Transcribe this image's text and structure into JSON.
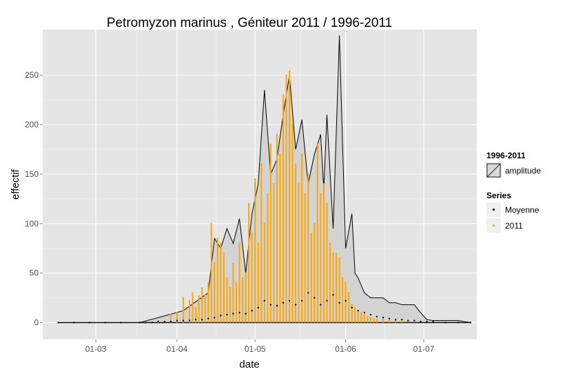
{
  "chart_data": {
    "type": "area",
    "title": "Petromyzon marinus , Géniteur 2011 / 1996-2011",
    "xlabel": "date",
    "ylabel": "effectif",
    "x_ticks": [
      "01-03",
      "01-04",
      "01-05",
      "01-06",
      "01-07"
    ],
    "y_ticks": [
      0,
      50,
      100,
      150,
      200,
      250
    ],
    "xlim_days": [
      -5,
      134
    ],
    "ylim": [
      -17,
      296
    ],
    "grid": true,
    "legend_position": "right",
    "legend_groups": [
      {
        "title": "1996-2011",
        "entries": [
          {
            "label": "amplitude",
            "kind": "fill",
            "color": "#d9d9d9"
          }
        ]
      },
      {
        "title": "Series",
        "entries": [
          {
            "label": "Moyenne",
            "kind": "point",
            "color": "#000000"
          },
          {
            "label": "2011",
            "kind": "point",
            "color": "#ffa500"
          }
        ]
      }
    ],
    "amplitude": {
      "x": [
        0,
        26,
        32,
        40,
        48,
        50,
        52,
        54,
        56,
        58,
        60,
        62,
        64,
        66,
        68,
        70,
        72,
        74,
        76,
        78,
        80,
        82,
        84,
        85,
        86,
        88,
        90,
        92,
        94,
        95,
        96,
        98,
        100,
        102,
        104,
        106,
        108,
        110,
        112,
        114,
        116,
        118,
        120,
        124,
        128,
        132
      ],
      "y": [
        0,
        0,
        5,
        12,
        30,
        85,
        75,
        95,
        80,
        105,
        50,
        110,
        140,
        235,
        150,
        165,
        210,
        250,
        175,
        205,
        140,
        170,
        190,
        135,
        210,
        95,
        290,
        75,
        110,
        50,
        45,
        30,
        25,
        25,
        25,
        20,
        20,
        18,
        18,
        18,
        10,
        3,
        2,
        2,
        2,
        0
      ]
    },
    "year_2011": {
      "x": [
        32,
        36,
        38,
        40,
        42,
        43,
        44,
        45,
        46,
        47,
        48,
        49,
        50,
        51,
        52,
        53,
        54,
        55,
        56,
        57,
        58,
        59,
        60,
        61,
        62,
        63,
        64,
        65,
        66,
        67,
        68,
        69,
        70,
        71,
        72,
        73,
        74,
        75,
        76,
        77,
        78,
        79,
        80,
        81,
        82,
        83,
        84,
        85,
        86,
        87,
        88,
        89,
        90,
        91,
        92,
        93,
        94,
        95,
        96,
        97,
        98,
        99,
        100,
        101,
        102,
        104,
        106,
        108,
        110
      ],
      "y": [
        2,
        8,
        10,
        25,
        22,
        30,
        15,
        27,
        35,
        28,
        40,
        100,
        60,
        85,
        80,
        70,
        45,
        35,
        60,
        40,
        80,
        45,
        50,
        120,
        90,
        145,
        80,
        160,
        100,
        130,
        180,
        140,
        190,
        170,
        230,
        250,
        254,
        200,
        160,
        140,
        170,
        130,
        150,
        90,
        100,
        180,
        130,
        140,
        120,
        80,
        70,
        70,
        65,
        45,
        40,
        30,
        18,
        15,
        12,
        10,
        8,
        6,
        5,
        4,
        3,
        3,
        2,
        2,
        1
      ]
    },
    "moyenne": {
      "x": [
        0,
        5,
        10,
        15,
        20,
        26,
        28,
        30,
        32,
        34,
        36,
        38,
        40,
        42,
        44,
        46,
        48,
        50,
        52,
        54,
        56,
        58,
        60,
        62,
        64,
        66,
        68,
        70,
        72,
        74,
        76,
        78,
        80,
        82,
        84,
        86,
        88,
        90,
        92,
        94,
        96,
        98,
        100,
        102,
        104,
        106,
        108,
        110,
        112,
        114,
        116,
        118,
        120,
        124,
        128,
        132
      ],
      "y": [
        0,
        0,
        0,
        0,
        0,
        0,
        0,
        0,
        1,
        1,
        1,
        2,
        2,
        2,
        3,
        3,
        4,
        5,
        7,
        8,
        9,
        10,
        9,
        12,
        15,
        22,
        18,
        17,
        20,
        22,
        18,
        22,
        30,
        25,
        18,
        22,
        28,
        20,
        22,
        15,
        12,
        10,
        8,
        6,
        5,
        4,
        3,
        3,
        2,
        2,
        1,
        1,
        1,
        0,
        0,
        0
      ]
    }
  }
}
